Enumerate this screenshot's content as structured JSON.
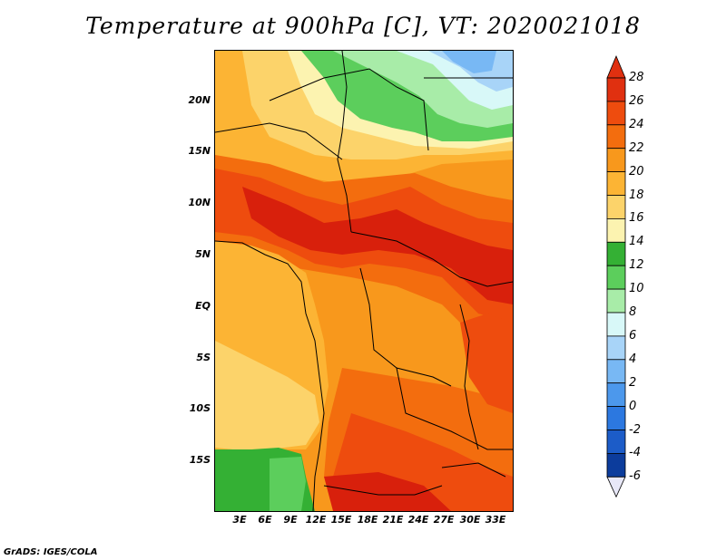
{
  "title": "Temperature at 900hPa [C], VT: 2020021018",
  "credit": "GrADS: IGES/COLA",
  "lat_ticks": [
    "20N",
    "15N",
    "10N",
    "5N",
    "EQ",
    "5S",
    "10S",
    "15S"
  ],
  "lon_ticks": [
    "3E",
    "6E",
    "9E",
    "12E",
    "15E",
    "18E",
    "21E",
    "24E",
    "27E",
    "30E",
    "33E"
  ],
  "colorbar": {
    "labels": [
      "28",
      "26",
      "24",
      "22",
      "20",
      "18",
      "16",
      "14",
      "12",
      "10",
      "8",
      "6",
      "4",
      "2",
      "0",
      "-2",
      "-4",
      "-6"
    ],
    "colors": [
      "#e03010",
      "#ee4c0e",
      "#f36d0e",
      "#f8981c",
      "#fcb434",
      "#fcd36a",
      "#fcf3b0",
      "#34b034",
      "#5cce5c",
      "#a8eca8",
      "#d8f8f8",
      "#a8d4f8",
      "#78b8f4",
      "#4c98ec",
      "#2c78e0",
      "#1c5cc8",
      "#0c3c9c",
      "#081878"
    ]
  },
  "palette": {
    "hot": "#d8200c",
    "red": "#ee4c0e",
    "orange": "#f36d0e",
    "amber": "#f8981c",
    "lightorange": "#fcb434",
    "yellow": "#fcd36a",
    "cream": "#fcf3b0",
    "green": "#34b034",
    "lightgreen": "#5cce5c",
    "palegreen": "#a8eca8",
    "cyan": "#d8f8f8",
    "lightblue": "#a8d4f8",
    "blue": "#78b8f4"
  }
}
